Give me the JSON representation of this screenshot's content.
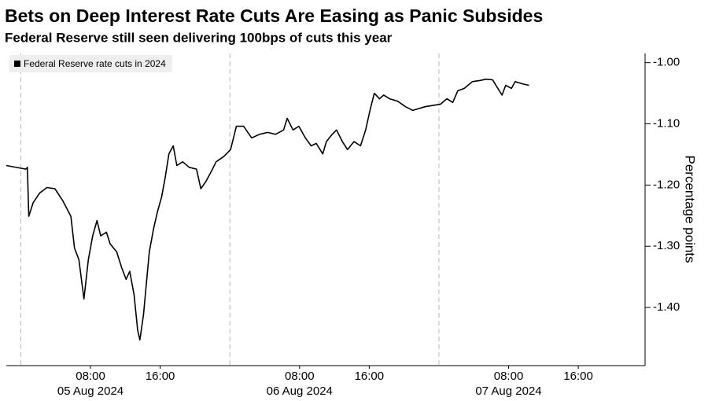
{
  "chart_data": {
    "type": "line",
    "title": "Bets on Deep Interest Rate Cuts Are Easing as Panic Subsides",
    "subtitle": "Federal Reserve still seen delivering 100bps of cuts this year",
    "ylabel": "Percentage points",
    "x": [
      "2024-08-04T22:20",
      "2024-08-05T00:35",
      "2024-08-05T00:45",
      "2024-08-05T00:55",
      "2024-08-05T01:25",
      "2024-08-05T02:10",
      "2024-08-05T03:00",
      "2024-08-05T03:55",
      "2024-08-05T04:50",
      "2024-08-05T05:45",
      "2024-08-05T06:10",
      "2024-08-05T06:40",
      "2024-08-05T07:15",
      "2024-08-05T07:45",
      "2024-08-05T08:15",
      "2024-08-05T08:45",
      "2024-08-05T09:10",
      "2024-08-05T09:50",
      "2024-08-05T10:15",
      "2024-08-05T11:00",
      "2024-08-05T11:35",
      "2024-08-05T12:05",
      "2024-08-05T12:30",
      "2024-08-05T13:00",
      "2024-08-05T13:25",
      "2024-08-05T13:40",
      "2024-08-05T14:05",
      "2024-08-05T14:20",
      "2024-08-05T14:45",
      "2024-08-05T15:15",
      "2024-08-05T15:40",
      "2024-08-05T16:10",
      "2024-08-05T16:35",
      "2024-08-05T17:00",
      "2024-08-05T17:30",
      "2024-08-05T17:55",
      "2024-08-05T18:35",
      "2024-08-05T19:20",
      "2024-08-05T20:10",
      "2024-08-05T20:40",
      "2024-08-05T21:15",
      "2024-08-05T22:00",
      "2024-08-05T22:25",
      "2024-08-05T23:20",
      "2024-08-06T00:05",
      "2024-08-06T00:45",
      "2024-08-06T01:35",
      "2024-08-06T02:30",
      "2024-08-06T03:25",
      "2024-08-06T04:20",
      "2024-08-06T05:15",
      "2024-08-06T06:10",
      "2024-08-06T06:35",
      "2024-08-06T07:15",
      "2024-08-06T07:55",
      "2024-08-06T08:40",
      "2024-08-06T09:20",
      "2024-08-06T09:55",
      "2024-08-06T10:40",
      "2024-08-06T11:05",
      "2024-08-06T11:45",
      "2024-08-06T12:15",
      "2024-08-06T12:55",
      "2024-08-06T13:30",
      "2024-08-06T14:15",
      "2024-08-06T15:00",
      "2024-08-06T15:35",
      "2024-08-06T16:05",
      "2024-08-06T16:35",
      "2024-08-06T17:10",
      "2024-08-06T17:40",
      "2024-08-06T18:20",
      "2024-08-06T19:15",
      "2024-08-06T20:10",
      "2024-08-06T21:00",
      "2024-08-06T22:25",
      "2024-08-07T00:10",
      "2024-08-07T00:55",
      "2024-08-07T01:35",
      "2024-08-07T02:10",
      "2024-08-07T02:55",
      "2024-08-07T03:50",
      "2024-08-07T04:45",
      "2024-08-07T05:25",
      "2024-08-07T06:10",
      "2024-08-07T06:40",
      "2024-08-07T07:15",
      "2024-08-07T07:40",
      "2024-08-07T08:20",
      "2024-08-07T08:45",
      "2024-08-07T09:40",
      "2024-08-07T10:20"
    ],
    "series": [
      {
        "name": "Federal Reserve rate cuts in 2024",
        "color": "#000000",
        "values": [
          -1.168,
          -1.174,
          -1.171,
          -1.251,
          -1.229,
          -1.213,
          -1.204,
          -1.206,
          -1.226,
          -1.251,
          -1.303,
          -1.322,
          -1.386,
          -1.322,
          -1.283,
          -1.258,
          -1.283,
          -1.277,
          -1.296,
          -1.309,
          -1.335,
          -1.354,
          -1.341,
          -1.379,
          -1.437,
          -1.453,
          -1.412,
          -1.373,
          -1.309,
          -1.271,
          -1.245,
          -1.219,
          -1.187,
          -1.149,
          -1.136,
          -1.168,
          -1.162,
          -1.171,
          -1.174,
          -1.206,
          -1.194,
          -1.174,
          -1.162,
          -1.153,
          -1.142,
          -1.104,
          -1.104,
          -1.123,
          -1.117,
          -1.114,
          -1.117,
          -1.11,
          -1.091,
          -1.11,
          -1.104,
          -1.123,
          -1.136,
          -1.132,
          -1.149,
          -1.129,
          -1.117,
          -1.11,
          -1.129,
          -1.142,
          -1.129,
          -1.136,
          -1.11,
          -1.078,
          -1.05,
          -1.059,
          -1.053,
          -1.059,
          -1.063,
          -1.072,
          -1.078,
          -1.072,
          -1.068,
          -1.059,
          -1.065,
          -1.046,
          -1.042,
          -1.031,
          -1.029,
          -1.027,
          -1.028,
          -1.04,
          -1.053,
          -1.037,
          -1.042,
          -1.031,
          -1.035,
          -1.037
        ]
      }
    ],
    "xlim": [
      "2024-08-04T22:20",
      "2024-08-07T23:40"
    ],
    "xticks": [
      {
        "value": "2024-08-05T08:00",
        "label": "08:00",
        "date": "05 Aug 2024"
      },
      {
        "value": "2024-08-05T16:00",
        "label": "16:00"
      },
      {
        "value": "2024-08-06T08:00",
        "label": "08:00",
        "date": "06 Aug 2024"
      },
      {
        "value": "2024-08-06T16:00",
        "label": "16:00"
      },
      {
        "value": "2024-08-07T08:00",
        "label": "08:00",
        "date": "07 Aug 2024"
      },
      {
        "value": "2024-08-07T16:00",
        "label": "16:00"
      }
    ],
    "day_separators": [
      "2024-08-05T00:00",
      "2024-08-06T00:00",
      "2024-08-07T00:00"
    ],
    "ylim": [
      -1.495,
      -0.985
    ],
    "yticks": [
      {
        "value": -1.0,
        "label": "-1.00"
      },
      {
        "value": -1.1,
        "label": "-1.10"
      },
      {
        "value": -1.2,
        "label": "-1.20"
      },
      {
        "value": -1.3,
        "label": "-1.30"
      },
      {
        "value": -1.4,
        "label": "-1.40"
      }
    ],
    "grid": false,
    "legend": "top-left"
  }
}
